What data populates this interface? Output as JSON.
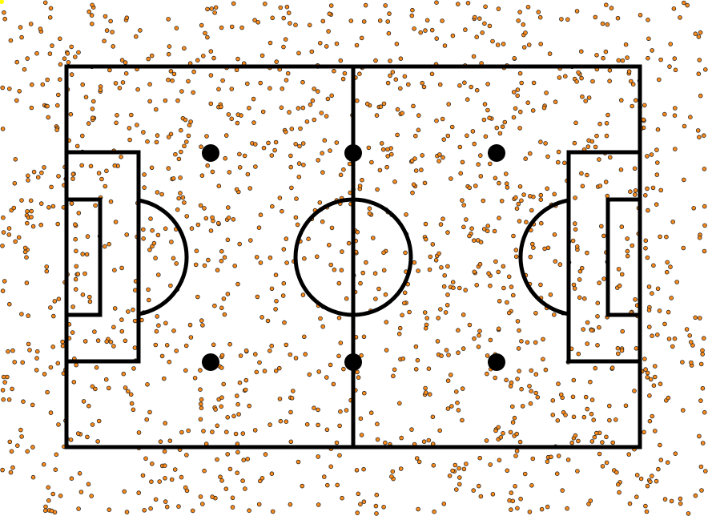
{
  "colors": {
    "background": "#ffffff",
    "lines": "#000000",
    "dot_fill": "#ff8c1a",
    "dot_stroke": "#222222",
    "corner_marker": "#ffff00"
  },
  "scatter": {
    "dot_count": 1600,
    "seed": 7
  }
}
